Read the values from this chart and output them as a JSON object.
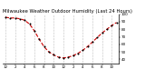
{
  "title": "Milwaukee Weather Outdoor Humidity (Last 24 Hours)",
  "background_color": "#ffffff",
  "plot_background": "#ffffff",
  "line_color": "#cc0000",
  "marker_color": "#000000",
  "grid_color": "#888888",
  "x_values": [
    0,
    1,
    2,
    3,
    4,
    5,
    6,
    7,
    8,
    9,
    10,
    11,
    12,
    13,
    14,
    15,
    16,
    17,
    18,
    19,
    20,
    21,
    22,
    23
  ],
  "y_values": [
    96,
    95,
    95,
    94,
    92,
    87,
    78,
    67,
    57,
    50,
    46,
    43,
    42,
    43,
    45,
    48,
    52,
    57,
    63,
    69,
    75,
    80,
    85,
    89
  ],
  "ylim": [
    35,
    100
  ],
  "yticks": [
    40,
    50,
    60,
    70,
    80,
    90,
    100
  ],
  "ytick_labels": [
    "40",
    "50",
    "60",
    "70",
    "80",
    "90",
    "100"
  ],
  "title_fontsize": 3.8,
  "tick_fontsize": 3.0,
  "line_width": 0.8,
  "marker_size": 1.2,
  "figsize": [
    1.6,
    0.87
  ],
  "dpi": 100
}
